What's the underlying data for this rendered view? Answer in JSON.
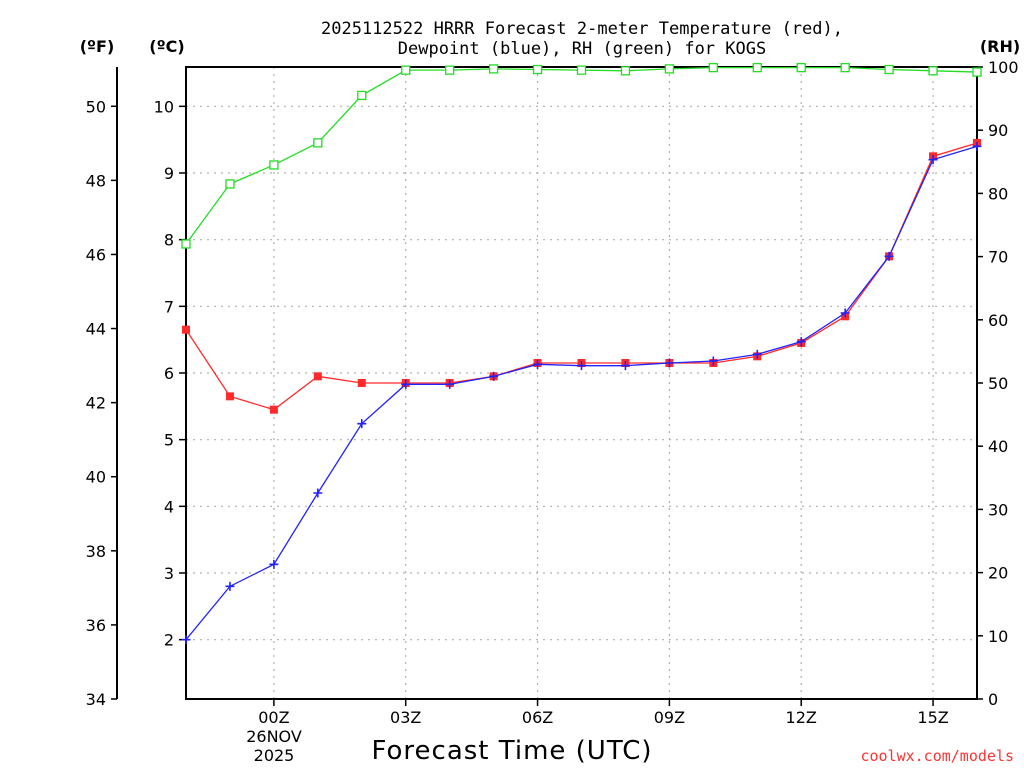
{
  "chart_data": {
    "type": "line",
    "title_line1": "2025112522 HRRR Forecast 2-meter Temperature (red),",
    "title_line2": "Dewpoint (blue), RH (green) for KOGS",
    "xlabel": "Forecast Time (UTC)",
    "x": [
      "22Z",
      "23Z",
      "00Z",
      "01Z",
      "02Z",
      "03Z",
      "04Z",
      "05Z",
      "06Z",
      "07Z",
      "08Z",
      "09Z",
      "10Z",
      "11Z",
      "12Z",
      "13Z",
      "14Z",
      "15Z",
      "16Z"
    ],
    "x_tick_labels": [
      {
        "index": 2,
        "label": "00Z"
      },
      {
        "index": 5,
        "label": "03Z"
      },
      {
        "index": 8,
        "label": "06Z"
      },
      {
        "index": 11,
        "label": "09Z"
      },
      {
        "index": 14,
        "label": "12Z"
      },
      {
        "index": 17,
        "label": "15Z"
      }
    ],
    "date_label_line1": "26NOV",
    "date_label_line2": "2025",
    "axes": {
      "fahrenheit": {
        "unit_label": "(ºF)",
        "min": 34,
        "max": 51.06,
        "ticks": [
          34,
          36,
          38,
          40,
          42,
          44,
          46,
          48,
          50
        ]
      },
      "celsius": {
        "unit_label": "(ºC)",
        "min": 1.11,
        "max": 10.59,
        "ticks": [
          2,
          3,
          4,
          5,
          6,
          7,
          8,
          9,
          10
        ]
      },
      "rh": {
        "unit_label": "(RH)",
        "min": 0,
        "max": 100,
        "ticks": [
          0,
          10,
          20,
          30,
          40,
          50,
          60,
          70,
          80,
          90,
          100
        ]
      }
    },
    "grid": true,
    "series": [
      {
        "name": "Temperature",
        "axis": "celsius",
        "color": "#ff2a2a",
        "marker": "filled-square",
        "values": [
          6.65,
          5.65,
          5.45,
          5.95,
          5.85,
          5.85,
          5.85,
          5.95,
          6.15,
          6.15,
          6.15,
          6.15,
          6.15,
          6.25,
          6.45,
          6.85,
          7.75,
          9.25,
          9.45
        ]
      },
      {
        "name": "Dewpoint",
        "axis": "celsius",
        "color": "#2222ff",
        "marker": "plus",
        "values": [
          2.0,
          2.8,
          3.13,
          4.2,
          5.24,
          5.83,
          5.83,
          5.95,
          6.13,
          6.11,
          6.11,
          6.15,
          6.18,
          6.28,
          6.47,
          6.9,
          7.75,
          9.2,
          9.4
        ]
      },
      {
        "name": "RH",
        "axis": "rh",
        "color": "#22dd22",
        "marker": "open-square",
        "values": [
          72,
          81.5,
          84.5,
          88,
          95.5,
          99.5,
          99.5,
          99.7,
          99.6,
          99.5,
          99.4,
          99.7,
          99.9,
          99.9,
          99.9,
          99.9,
          99.6,
          99.4,
          99.2
        ]
      }
    ],
    "credit": "coolwx.com/models"
  }
}
